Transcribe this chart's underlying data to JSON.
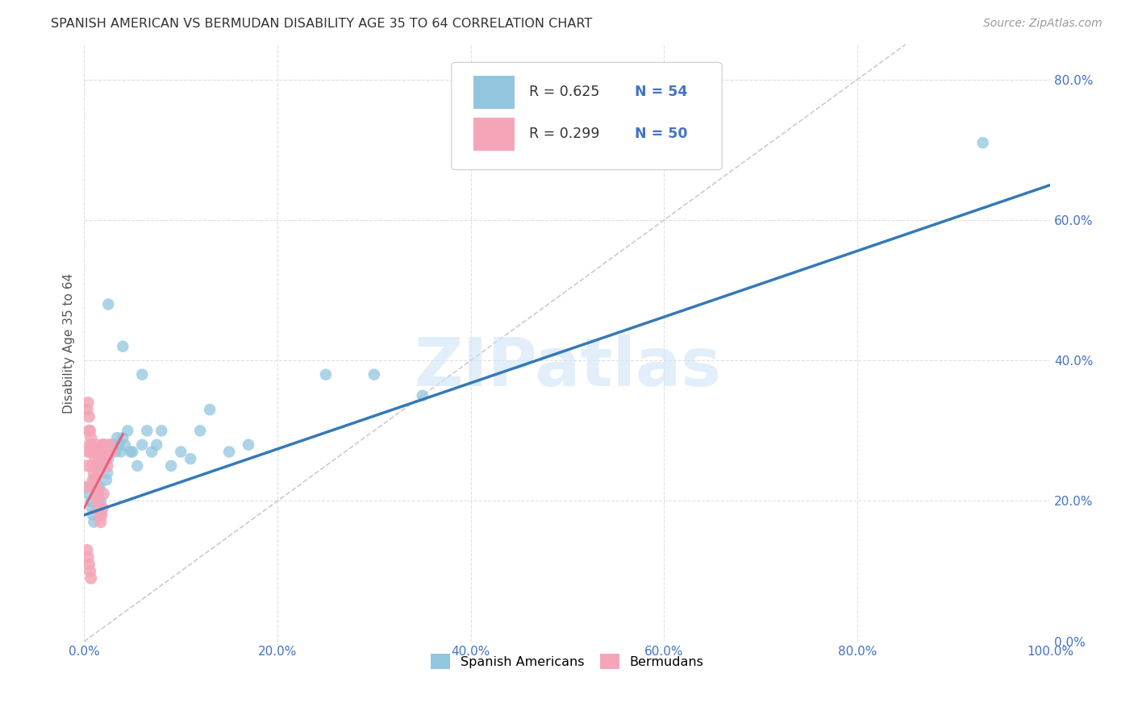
{
  "title": "SPANISH AMERICAN VS BERMUDAN DISABILITY AGE 35 TO 64 CORRELATION CHART",
  "source": "Source: ZipAtlas.com",
  "ylabel": "Disability Age 35 to 64",
  "xmin": 0.0,
  "xmax": 1.0,
  "ymin": 0.0,
  "ymax": 0.85,
  "xticks": [
    0.0,
    0.2,
    0.4,
    0.6,
    0.8,
    1.0
  ],
  "yticks": [
    0.0,
    0.2,
    0.4,
    0.6,
    0.8
  ],
  "xtick_labels": [
    "0.0%",
    "20.0%",
    "40.0%",
    "60.0%",
    "80.0%",
    "100.0%"
  ],
  "ytick_labels": [
    "0.0%",
    "20.0%",
    "40.0%",
    "60.0%",
    "80.0%"
  ],
  "blue_color": "#92c5de",
  "pink_color": "#f4a6b8",
  "blue_line_color": "#3579b8",
  "pink_line_color": "#e8607a",
  "tick_color": "#4472c4",
  "watermark_color": "#d0e4f5",
  "watermark": "ZIPatlas",
  "blue_R": "0.625",
  "blue_N": "54",
  "pink_R": "0.299",
  "pink_N": "50",
  "legend_label_blue": "Spanish Americans",
  "legend_label_pink": "Bermudans",
  "blue_scatter_x": [
    0.003,
    0.005,
    0.007,
    0.008,
    0.009,
    0.01,
    0.011,
    0.012,
    0.013,
    0.014,
    0.015,
    0.016,
    0.017,
    0.018,
    0.019,
    0.02,
    0.021,
    0.022,
    0.023,
    0.024,
    0.025,
    0.026,
    0.027,
    0.028,
    0.03,
    0.032,
    0.034,
    0.036,
    0.038,
    0.04,
    0.042,
    0.045,
    0.048,
    0.05,
    0.055,
    0.06,
    0.065,
    0.07,
    0.075,
    0.08,
    0.09,
    0.1,
    0.11,
    0.12,
    0.13,
    0.15,
    0.17,
    0.25,
    0.3,
    0.35,
    0.04,
    0.06,
    0.93,
    0.025
  ],
  "blue_scatter_y": [
    0.22,
    0.21,
    0.2,
    0.19,
    0.18,
    0.17,
    0.22,
    0.23,
    0.25,
    0.22,
    0.21,
    0.22,
    0.2,
    0.25,
    0.27,
    0.28,
    0.26,
    0.27,
    0.23,
    0.24,
    0.26,
    0.27,
    0.28,
    0.27,
    0.28,
    0.27,
    0.29,
    0.28,
    0.27,
    0.29,
    0.28,
    0.3,
    0.27,
    0.27,
    0.25,
    0.28,
    0.3,
    0.27,
    0.28,
    0.3,
    0.25,
    0.27,
    0.26,
    0.3,
    0.33,
    0.27,
    0.28,
    0.38,
    0.38,
    0.35,
    0.42,
    0.38,
    0.71,
    0.48
  ],
  "pink_scatter_x": [
    0.002,
    0.003,
    0.004,
    0.005,
    0.006,
    0.007,
    0.008,
    0.009,
    0.01,
    0.011,
    0.012,
    0.013,
    0.014,
    0.015,
    0.016,
    0.017,
    0.018,
    0.019,
    0.02,
    0.021,
    0.022,
    0.023,
    0.024,
    0.025,
    0.026,
    0.027,
    0.028,
    0.003,
    0.004,
    0.005,
    0.006,
    0.007,
    0.008,
    0.009,
    0.01,
    0.011,
    0.012,
    0.013,
    0.014,
    0.015,
    0.016,
    0.017,
    0.018,
    0.019,
    0.02,
    0.003,
    0.004,
    0.005,
    0.006,
    0.007
  ],
  "pink_scatter_y": [
    0.22,
    0.25,
    0.27,
    0.3,
    0.28,
    0.27,
    0.25,
    0.23,
    0.24,
    0.26,
    0.27,
    0.28,
    0.25,
    0.24,
    0.26,
    0.27,
    0.27,
    0.28,
    0.26,
    0.28,
    0.27,
    0.26,
    0.25,
    0.27,
    0.28,
    0.27,
    0.27,
    0.33,
    0.34,
    0.32,
    0.3,
    0.29,
    0.28,
    0.27,
    0.22,
    0.23,
    0.22,
    0.21,
    0.2,
    0.19,
    0.18,
    0.17,
    0.18,
    0.19,
    0.21,
    0.13,
    0.12,
    0.11,
    0.1,
    0.09
  ],
  "blue_trend_x": [
    0.0,
    1.0
  ],
  "blue_trend_y": [
    0.18,
    0.65
  ],
  "pink_trend_x": [
    0.0,
    0.04
  ],
  "pink_trend_y": [
    0.19,
    0.295
  ],
  "diag_line_color": "#cccccc",
  "grid_color": "#e0e0e0",
  "background_color": "#ffffff",
  "title_fontsize": 11.5,
  "axis_label_fontsize": 11,
  "tick_fontsize": 11,
  "source_fontsize": 10,
  "legend_text_dark": "#333333",
  "legend_text_blue": "#4472c4"
}
